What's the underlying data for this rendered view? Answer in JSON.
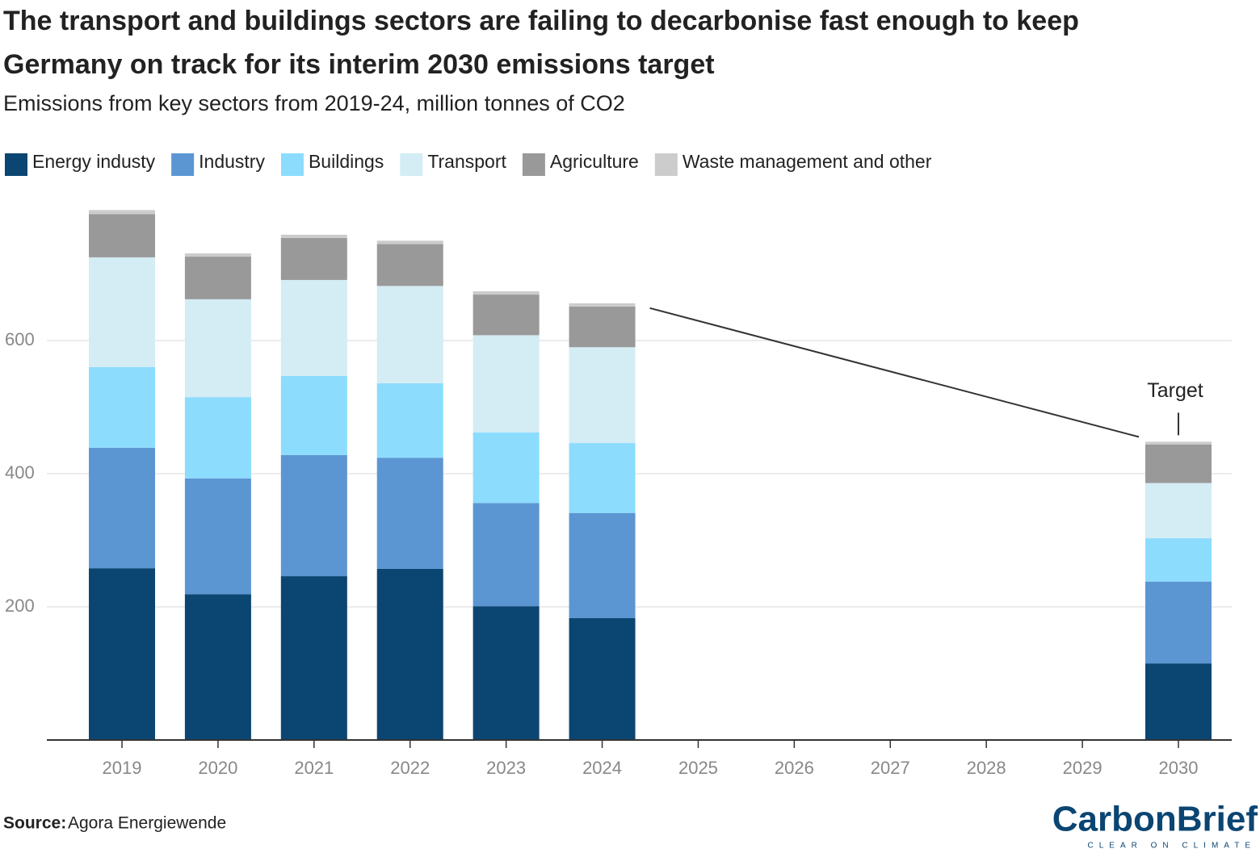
{
  "chart_data": {
    "type": "bar",
    "stacked": true,
    "title": "The transport and buildings sectors are failing to decarbonise fast enough to keep Germany on track for its interim 2030 emissions target",
    "subtitle": "Emissions from key sectors from 2019-24, million tonnes of CO2",
    "categories": [
      "2019",
      "2020",
      "2021",
      "2022",
      "2023",
      "2024",
      "2025",
      "2026",
      "2027",
      "2028",
      "2029",
      "2030"
    ],
    "series": [
      {
        "name": "Energy industy",
        "color": "#0b4572",
        "values": [
          258,
          219,
          246,
          257,
          201,
          183,
          null,
          null,
          null,
          null,
          null,
          115
        ]
      },
      {
        "name": "Industry",
        "color": "#5b96d2",
        "values": [
          181,
          174,
          182,
          167,
          155,
          158,
          null,
          null,
          null,
          null,
          null,
          123
        ]
      },
      {
        "name": "Buildings",
        "color": "#8cdcfe",
        "values": [
          121,
          122,
          119,
          112,
          106,
          105,
          null,
          null,
          null,
          null,
          null,
          65
        ]
      },
      {
        "name": "Transport",
        "color": "#d4ecf4",
        "values": [
          165,
          147,
          144,
          146,
          146,
          144,
          null,
          null,
          null,
          null,
          null,
          83
        ]
      },
      {
        "name": "Agriculture",
        "color": "#999999",
        "values": [
          65,
          64,
          63,
          63,
          61,
          61,
          null,
          null,
          null,
          null,
          null,
          58
        ]
      },
      {
        "name": "Waste management and other",
        "color": "#cccccc",
        "values": [
          6,
          5,
          5,
          5,
          5,
          5,
          null,
          null,
          null,
          null,
          null,
          4
        ]
      }
    ],
    "ylim": [
      0,
      800
    ],
    "yticks": [
      200,
      400,
      600
    ],
    "grid": true,
    "annotation": "Target",
    "source_label": "Source:",
    "source": "Agora Energiewende",
    "logo": "CarbonBrief",
    "logo_tagline": "CLEAR ON CLIMATE"
  }
}
